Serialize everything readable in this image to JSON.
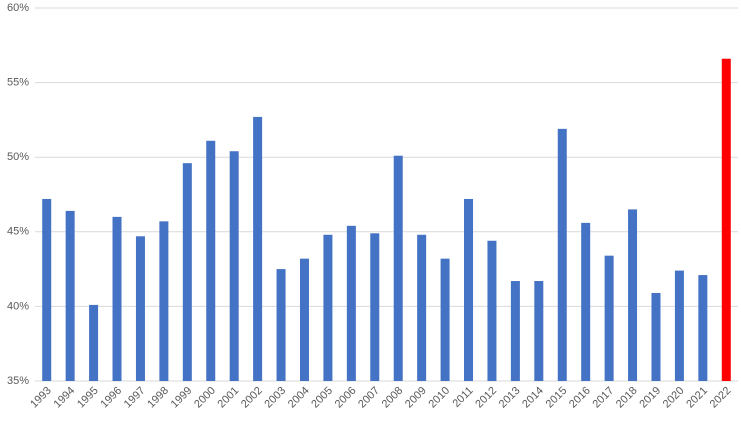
{
  "chart_data": {
    "type": "bar",
    "categories": [
      "1993",
      "1994",
      "1995",
      "1996",
      "1997",
      "1998",
      "1999",
      "2000",
      "2001",
      "2002",
      "2003",
      "2004",
      "2005",
      "2006",
      "2007",
      "2008",
      "2009",
      "2010",
      "2011",
      "2012",
      "2013",
      "2014",
      "2015",
      "2016",
      "2017",
      "2018",
      "2019",
      "2020",
      "2021",
      "2022"
    ],
    "values": [
      47.2,
      46.4,
      40.1,
      46.0,
      44.7,
      45.7,
      49.6,
      51.1,
      50.4,
      52.7,
      42.5,
      43.2,
      44.8,
      45.4,
      44.9,
      50.1,
      44.8,
      43.2,
      47.2,
      44.4,
      41.7,
      41.7,
      51.9,
      45.6,
      43.4,
      46.5,
      40.9,
      42.4,
      42.1,
      56.6
    ],
    "colors": [
      "#4472c4",
      "#4472c4",
      "#4472c4",
      "#4472c4",
      "#4472c4",
      "#4472c4",
      "#4472c4",
      "#4472c4",
      "#4472c4",
      "#4472c4",
      "#4472c4",
      "#4472c4",
      "#4472c4",
      "#4472c4",
      "#4472c4",
      "#4472c4",
      "#4472c4",
      "#4472c4",
      "#4472c4",
      "#4472c4",
      "#4472c4",
      "#4472c4",
      "#4472c4",
      "#4472c4",
      "#4472c4",
      "#4472c4",
      "#4472c4",
      "#4472c4",
      "#4472c4",
      "#ff0000"
    ],
    "ylim": [
      35,
      60
    ],
    "yticks": [
      {
        "value": 35,
        "label": "35%"
      },
      {
        "value": 40,
        "label": "40%"
      },
      {
        "value": 45,
        "label": "45%"
      },
      {
        "value": 50,
        "label": "50%"
      },
      {
        "value": 55,
        "label": "55%"
      },
      {
        "value": 60,
        "label": "60%"
      }
    ],
    "grid": true
  }
}
